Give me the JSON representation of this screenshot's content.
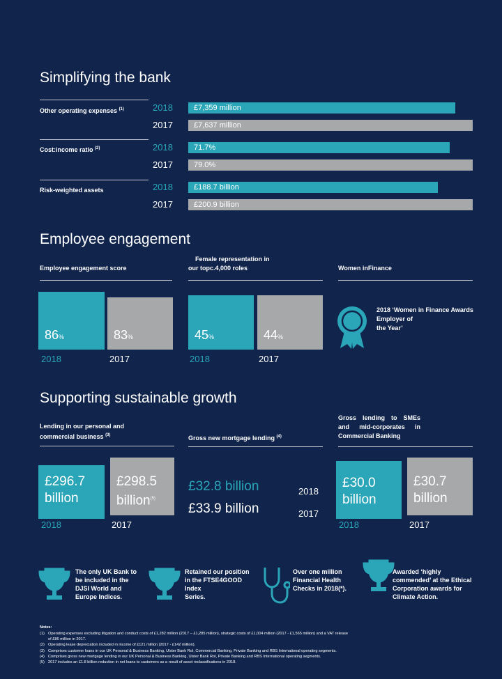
{
  "simplifying": {
    "title": "Simplifying the bank",
    "metrics": [
      {
        "label": "Other operating expenses",
        "note": "(1)",
        "rows": [
          {
            "year": "2018",
            "value": "£7,359 million"
          },
          {
            "year": "2017",
            "value": "£7,637 million"
          }
        ]
      },
      {
        "label": "Cost:income ratio",
        "note": "(2)",
        "rows": [
          {
            "year": "2018",
            "value": "71.7%"
          },
          {
            "year": "2017",
            "value": "79.0%"
          }
        ]
      },
      {
        "label": "Risk-weighted assets",
        "rows": [
          {
            "year": "2018",
            "value": "£188.7 billion"
          },
          {
            "year": "2017",
            "value": "£200.9 billion"
          }
        ]
      }
    ]
  },
  "engagement": {
    "title": "Employee engagement",
    "score": {
      "label": "Employee engagement score",
      "items": [
        {
          "value": "86",
          "unit": "%",
          "year": "2018"
        },
        {
          "value": "83",
          "unit": "%",
          "year": "2017"
        }
      ]
    },
    "female": {
      "label_lines": [
        "Female representation in",
        "our topc.4,000 roles"
      ],
      "items": [
        {
          "value": "45",
          "unit": "%",
          "year": "2018"
        },
        {
          "value": "44",
          "unit": "%",
          "year": "2017"
        }
      ]
    },
    "women": {
      "label": "Women inFinance",
      "award_lines": [
        "2018 ‘Women in Finance Awards",
        "Employer of",
        "the Year’"
      ]
    }
  },
  "growth": {
    "title": "Supporting sustainable growth",
    "lending": {
      "label_lines": [
        "Lending in our personal and",
        "commercial business"
      ],
      "note": "(3)",
      "items": [
        {
          "value_lines": [
            "£296.7",
            "billion"
          ],
          "year": "2018"
        },
        {
          "value_lines": [
            "£298.5",
            "billion"
          ],
          "note": "(5)",
          "year": "2017"
        }
      ]
    },
    "mortgage": {
      "label": "Gross new mortgage lending",
      "note": "(4)",
      "items": [
        {
          "value": "£32.8 billion",
          "year": "2018"
        },
        {
          "value": "£33.9 billion",
          "year": "2017"
        }
      ]
    },
    "sme": {
      "label_lines": [
        "Gross lending to SMEs",
        "and mid-corporates in",
        "Commercial Banking"
      ],
      "items": [
        {
          "value_lines": [
            "£30.0",
            "billion"
          ],
          "year": "2018"
        },
        {
          "value_lines": [
            "£30.7",
            "billion"
          ],
          "year": "2017"
        }
      ]
    }
  },
  "awards": [
    {
      "lines": [
        "The only UK Bank to",
        "be included in the",
        "DJSI World and",
        "Europe Indices."
      ]
    },
    {
      "lines": [
        "Retained our position",
        "in the FTSE4GOOD",
        "Index",
        "Series."
      ]
    },
    {
      "lines": [
        "Over one million",
        "Financial Health",
        "Checks in 2018(*)."
      ]
    },
    {
      "lines": [
        "Awarded ‘highly",
        "commended’ at the Ethical",
        "Corporation awards for",
        "Climate Action."
      ]
    }
  ],
  "notes": {
    "title": "Notes:",
    "items": [
      {
        "number": "(1)",
        "lines": [
          "Operating expenses excluding litigation and conduct costs of £1,282 million (2017 – £1,285 million), strategic costs of £1,004 million (2017 - £1,565 million) and a VAT release",
          "of £86 million in 2017."
        ]
      },
      {
        "number": "(2)",
        "lines": [
          "Operating lease depreciation included in income of £121 million (2017 - £142 million)."
        ]
      },
      {
        "number": "(3)",
        "lines": [
          "Comprises customer loans in our UK Personal & Business Banking, Ulster Bank RoI, Commercial Banking, Private Banking and RBS International operating segments."
        ]
      },
      {
        "number": "(4)",
        "lines": [
          "Comprises gross new mortgage lending in our UK Personal & Business Banking, Ulster Bank RoI, Private Banking and RBS International operating segments."
        ]
      },
      {
        "number": "(5)",
        "lines": [
          "2017 includes an £1.8 billion reduction in net loans to customers as a result of asset reclassifications in 2018."
        ]
      }
    ]
  }
}
